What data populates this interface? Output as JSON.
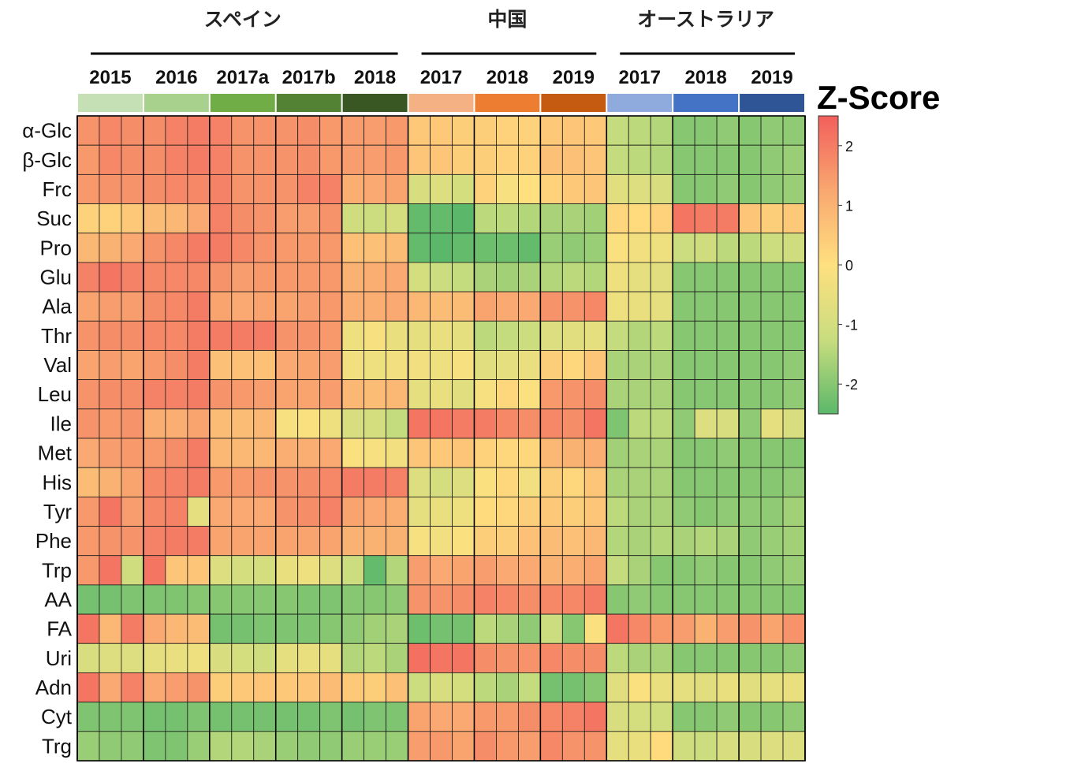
{
  "chart_data": {
    "type": "heatmap",
    "legend_title": "Z-Score",
    "legend_ticks": [
      2,
      1,
      0,
      -1,
      -2
    ],
    "zlim": [
      -2.5,
      2.5
    ],
    "colorscale": [
      "#5bb86a",
      "#c9dd7f",
      "#ffe07f",
      "#f9a770",
      "#f25f5c"
    ],
    "groups": [
      {
        "label": "スペイン",
        "years": [
          {
            "label": "2015",
            "color": "#c5e0b4"
          },
          {
            "label": "2016",
            "color": "#a9d18e"
          },
          {
            "label": "2017a",
            "color": "#70ad47"
          },
          {
            "label": "2017b",
            "color": "#548235"
          },
          {
            "label": "2018",
            "color": "#385723"
          }
        ]
      },
      {
        "label": "中国",
        "years": [
          {
            "label": "2017",
            "color": "#f4b183"
          },
          {
            "label": "2018",
            "color": "#ed7d31"
          },
          {
            "label": "2019",
            "color": "#c55a11"
          }
        ]
      },
      {
        "label": "オーストラリア",
        "years": [
          {
            "label": "2017",
            "color": "#8faadc"
          },
          {
            "label": "2018",
            "color": "#4472c4"
          },
          {
            "label": "2019",
            "color": "#2f5597"
          }
        ]
      }
    ],
    "samples_per_year": 3,
    "rows": [
      {
        "label": "α-Glc",
        "values": [
          1.6,
          1.8,
          1.7,
          1.7,
          1.9,
          2.0,
          1.9,
          1.6,
          1.6,
          1.6,
          1.7,
          1.5,
          1.4,
          1.4,
          1.5,
          0.5,
          0.5,
          0.4,
          0.4,
          0.3,
          0.3,
          0.5,
          0.6,
          0.5,
          -1.3,
          -1.4,
          -1.5,
          -2.0,
          -2.0,
          -1.9,
          -2.0,
          -1.9,
          -1.9
        ]
      },
      {
        "label": "β-Glc",
        "values": [
          1.5,
          1.8,
          1.7,
          1.7,
          1.9,
          2.0,
          1.9,
          1.6,
          1.6,
          1.6,
          1.7,
          1.5,
          1.4,
          1.4,
          1.5,
          0.6,
          0.6,
          0.4,
          0.4,
          0.3,
          0.3,
          0.7,
          0.7,
          0.6,
          -1.3,
          -1.4,
          -1.5,
          -2.0,
          -2.0,
          -2.0,
          -2.0,
          -1.9,
          -1.8
        ]
      },
      {
        "label": "Frc",
        "values": [
          1.5,
          1.6,
          1.6,
          1.7,
          1.8,
          1.8,
          1.9,
          1.6,
          1.6,
          1.6,
          1.9,
          1.9,
          1.1,
          1.2,
          1.3,
          -0.9,
          -0.8,
          -1.0,
          0.3,
          -0.2,
          0.0,
          0.3,
          0.5,
          0.6,
          -0.7,
          -0.8,
          -0.9,
          -2.0,
          -2.0,
          -1.9,
          -2.0,
          -1.9,
          -1.8
        ]
      },
      {
        "label": "Suc",
        "values": [
          0.3,
          0.3,
          0.5,
          0.8,
          0.9,
          1.2,
          1.9,
          1.7,
          1.6,
          1.4,
          1.4,
          1.6,
          -1.1,
          -1.2,
          -1.0,
          -2.4,
          -2.4,
          -2.5,
          -1.4,
          -1.4,
          -1.5,
          -1.6,
          -1.6,
          -1.7,
          0.2,
          0.1,
          0.3,
          2.1,
          2.0,
          2.0,
          0.6,
          0.4,
          0.5
        ]
      },
      {
        "label": "Pro",
        "values": [
          0.9,
          1.0,
          1.2,
          1.6,
          1.8,
          2.0,
          2.0,
          1.8,
          1.6,
          1.5,
          1.5,
          1.5,
          0.7,
          0.7,
          0.8,
          -2.4,
          -2.5,
          -2.4,
          -2.3,
          -2.3,
          -2.4,
          -1.8,
          -1.9,
          -1.8,
          -0.1,
          -0.3,
          -0.4,
          -1.2,
          -1.1,
          -1.4,
          -1.4,
          -1.2,
          -1.1
        ]
      },
      {
        "label": "Glu",
        "values": [
          1.9,
          2.1,
          1.9,
          1.8,
          1.8,
          1.8,
          1.6,
          1.4,
          1.5,
          1.5,
          1.5,
          1.5,
          1.0,
          1.1,
          1.2,
          -1.0,
          -1.2,
          -1.3,
          -1.6,
          -1.7,
          -1.6,
          -1.5,
          -1.4,
          -1.5,
          -0.4,
          -0.6,
          -0.7,
          -2.0,
          -2.0,
          -2.0,
          -2.0,
          -2.0,
          -2.0
        ]
      },
      {
        "label": "Ala",
        "values": [
          1.3,
          1.4,
          1.4,
          1.7,
          1.8,
          2.0,
          1.3,
          1.2,
          1.3,
          1.3,
          1.4,
          1.5,
          1.1,
          1.1,
          1.2,
          0.9,
          0.8,
          0.8,
          1.3,
          1.2,
          1.2,
          1.6,
          1.6,
          1.8,
          -0.4,
          -0.5,
          -0.6,
          -2.0,
          -2.0,
          -2.0,
          -2.0,
          -2.0,
          -2.0
        ]
      },
      {
        "label": "Thr",
        "values": [
          1.6,
          1.7,
          1.7,
          1.8,
          1.8,
          2.0,
          2.0,
          2.0,
          2.0,
          1.6,
          1.6,
          1.5,
          -0.4,
          -0.2,
          -0.5,
          -0.6,
          -0.5,
          -0.6,
          -1.4,
          -1.3,
          -1.2,
          -0.8,
          -0.7,
          -0.6,
          -1.3,
          -1.5,
          -1.4,
          -2.0,
          -2.0,
          -2.0,
          -2.0,
          -2.0,
          -2.0
        ]
      },
      {
        "label": "Val",
        "values": [
          1.3,
          1.4,
          1.3,
          1.5,
          1.7,
          2.0,
          0.7,
          0.7,
          0.7,
          1.2,
          1.3,
          1.4,
          -0.3,
          -0.4,
          -0.3,
          -0.3,
          -0.4,
          -0.2,
          -0.7,
          -0.6,
          -0.5,
          0.4,
          0.2,
          0.6,
          -1.6,
          -1.6,
          -1.6,
          -2.0,
          -2.0,
          -2.0,
          -2.0,
          -2.0,
          -1.9
        ]
      },
      {
        "label": "Leu",
        "values": [
          1.6,
          1.7,
          1.7,
          1.9,
          1.9,
          2.0,
          1.6,
          1.5,
          1.4,
          1.3,
          1.3,
          1.4,
          0.9,
          0.8,
          0.9,
          -0.6,
          -0.5,
          -0.7,
          -0.2,
          0.2,
          -0.1,
          1.5,
          1.6,
          1.7,
          -1.6,
          -1.6,
          -1.6,
          -2.0,
          -2.0,
          -2.0,
          -2.0,
          -2.0,
          -1.9
        ]
      },
      {
        "label": "Ile",
        "values": [
          1.6,
          1.5,
          1.6,
          1.1,
          1.1,
          1.3,
          0.8,
          0.8,
          0.9,
          -0.2,
          -0.1,
          -0.4,
          -0.9,
          -1.0,
          -1.3,
          2.1,
          2.1,
          2.0,
          2.0,
          1.8,
          1.7,
          1.8,
          1.7,
          2.1,
          -2.1,
          -1.4,
          -1.4,
          -1.9,
          -0.8,
          -0.9,
          -1.9,
          -0.6,
          -0.9
        ]
      },
      {
        "label": "Met",
        "values": [
          1.2,
          1.4,
          1.5,
          1.5,
          1.7,
          2.0,
          0.9,
          0.9,
          0.9,
          1.1,
          1.1,
          1.2,
          -0.1,
          -0.2,
          -0.3,
          0.6,
          0.5,
          0.6,
          0.3,
          0.2,
          0.2,
          0.9,
          1.0,
          1.1,
          -1.7,
          -1.6,
          -1.6,
          -2.0,
          -2.0,
          -1.9,
          -2.0,
          -2.0,
          -2.0
        ]
      },
      {
        "label": "His",
        "values": [
          0.8,
          1.0,
          1.3,
          1.8,
          1.9,
          2.0,
          1.5,
          1.5,
          1.6,
          1.6,
          1.7,
          1.8,
          2.0,
          2.0,
          1.9,
          -0.8,
          -1.0,
          -0.8,
          -0.1,
          0.2,
          -0.3,
          0.4,
          0.2,
          0.6,
          -1.6,
          -1.6,
          -1.6,
          -2.0,
          -2.0,
          -2.0,
          -2.0,
          -2.0,
          -1.9
        ]
      },
      {
        "label": "Tyr",
        "values": [
          1.5,
          2.1,
          1.4,
          1.8,
          1.9,
          -0.6,
          1.2,
          1.2,
          1.2,
          1.6,
          1.7,
          1.9,
          1.3,
          1.2,
          1.1,
          -0.6,
          -0.5,
          -0.4,
          0.1,
          0.2,
          0.4,
          0.5,
          0.4,
          0.6,
          -1.4,
          -1.6,
          -1.6,
          -1.9,
          -2.0,
          -1.9,
          -1.9,
          -1.9,
          -1.7
        ]
      },
      {
        "label": "Phe",
        "values": [
          1.5,
          1.6,
          1.6,
          1.9,
          2.0,
          2.0,
          1.3,
          1.3,
          1.3,
          1.3,
          1.3,
          1.3,
          1.0,
          1.0,
          1.0,
          -0.2,
          -0.3,
          -0.1,
          0.4,
          0.4,
          0.7,
          0.8,
          0.7,
          0.9,
          -1.5,
          -1.6,
          -1.5,
          -1.6,
          -1.5,
          -1.6,
          -1.9,
          -1.8,
          -1.7
        ]
      },
      {
        "label": "Trp",
        "values": [
          1.5,
          2.1,
          -1.1,
          2.1,
          0.6,
          0.6,
          -0.8,
          -1.0,
          -1.0,
          -0.5,
          -0.4,
          -0.8,
          -1.2,
          -2.4,
          -1.5,
          1.4,
          1.2,
          1.3,
          1.4,
          1.2,
          1.2,
          1.0,
          1.1,
          1.3,
          -1.3,
          -1.6,
          -2.0,
          -2.0,
          -1.9,
          -2.0,
          -2.0,
          -1.9,
          -1.8
        ]
      },
      {
        "label": "AA",
        "values": [
          -2.2,
          -2.2,
          -2.1,
          -2.1,
          -2.1,
          -2.0,
          -2.0,
          -2.0,
          -2.0,
          -2.0,
          -2.1,
          -2.1,
          -2.0,
          -2.0,
          -1.9,
          1.6,
          1.6,
          1.7,
          1.9,
          1.8,
          1.7,
          1.8,
          1.8,
          2.0,
          -2.0,
          -1.9,
          -2.0,
          -2.0,
          -2.0,
          -2.0,
          -2.0,
          -2.0,
          -2.0
        ]
      },
      {
        "label": "FA",
        "values": [
          2.1,
          0.9,
          2.0,
          1.2,
          0.9,
          0.8,
          -2.2,
          -2.2,
          -2.1,
          -2.1,
          -2.1,
          -2.0,
          -1.9,
          -1.7,
          -1.6,
          -2.3,
          -2.2,
          -2.2,
          -1.4,
          -1.6,
          -1.9,
          -1.2,
          -2.0,
          -0.1,
          2.1,
          1.8,
          1.5,
          1.4,
          1.0,
          1.4,
          1.6,
          1.3,
          1.6
        ]
      },
      {
        "label": "Uri",
        "values": [
          -0.9,
          -0.8,
          -0.8,
          -0.6,
          -0.5,
          -0.4,
          -0.9,
          -1.0,
          -1.1,
          -0.6,
          -0.5,
          -0.6,
          -1.5,
          -1.4,
          -1.6,
          2.2,
          2.1,
          2.1,
          1.7,
          1.6,
          1.6,
          1.8,
          1.7,
          1.7,
          -1.4,
          -1.6,
          -1.6,
          -2.0,
          -2.0,
          -2.0,
          -2.0,
          -2.0,
          -1.9
        ]
      },
      {
        "label": "Adn",
        "values": [
          2.1,
          1.2,
          1.9,
          1.2,
          1.4,
          1.6,
          0.4,
          0.5,
          0.6,
          0.5,
          0.6,
          0.8,
          0.5,
          0.4,
          0.7,
          -1.2,
          -0.9,
          -1.0,
          -1.4,
          -1.6,
          -1.3,
          -2.2,
          -2.2,
          -2.0,
          -0.7,
          -0.1,
          -0.5,
          -0.6,
          -0.7,
          -0.5,
          -0.7,
          -0.6,
          -0.5
        ]
      },
      {
        "label": "Cyt",
        "values": [
          -2.1,
          -2.1,
          -2.1,
          -2.2,
          -2.2,
          -2.1,
          -2.2,
          -2.2,
          -2.2,
          -2.2,
          -2.2,
          -2.1,
          -2.2,
          -2.1,
          -2.1,
          1.3,
          1.2,
          1.2,
          1.5,
          1.5,
          1.7,
          1.8,
          1.9,
          2.1,
          -0.9,
          -1.0,
          -1.1,
          -2.0,
          -2.0,
          -1.9,
          -2.0,
          -2.0,
          -1.9
        ]
      },
      {
        "label": "Trg",
        "values": [
          -1.8,
          -1.9,
          -1.9,
          -2.1,
          -2.1,
          -1.8,
          -1.5,
          -1.5,
          -1.6,
          -1.8,
          -1.9,
          -1.9,
          -1.8,
          -1.8,
          -1.8,
          1.4,
          1.5,
          1.3,
          1.7,
          1.5,
          1.4,
          1.8,
          1.6,
          1.6,
          -0.6,
          -0.5,
          0.1,
          -1.1,
          -1.2,
          -0.9,
          -0.9,
          -0.8,
          -0.8
        ]
      }
    ]
  }
}
